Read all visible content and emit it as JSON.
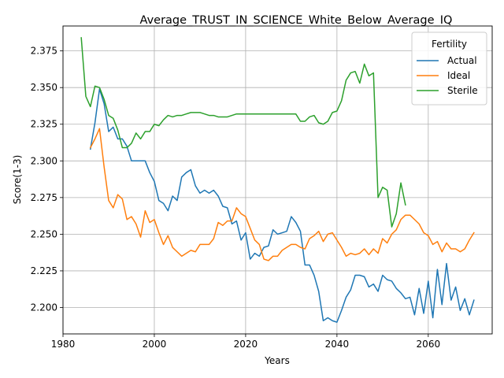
{
  "chart_data": {
    "type": "line",
    "title": "Average_TRUST_IN_SCIENCE_White_Below_Average_IQ",
    "xlabel": "Years",
    "ylabel": "Score(1-3)",
    "xlim": [
      1980,
      2074
    ],
    "ylim": [
      2.182,
      2.392
    ],
    "xticks": [
      1980,
      2000,
      2020,
      2040,
      2060
    ],
    "yticks": [
      2.2,
      2.225,
      2.25,
      2.275,
      2.3,
      2.325,
      2.35,
      2.375
    ],
    "grid": true,
    "legend": {
      "title": "Fertility",
      "placement": "top-right"
    },
    "series": [
      {
        "name": "Actual",
        "color": "#1f77b4",
        "x": [
          1986,
          1987,
          1988,
          1989,
          1990,
          1991,
          1992,
          1993,
          1994,
          1995,
          1996,
          1997,
          1998,
          1999,
          2000,
          2001,
          2002,
          2003,
          2004,
          2005,
          2006,
          2007,
          2008,
          2009,
          2010,
          2011,
          2012,
          2013,
          2014,
          2015,
          2016,
          2017,
          2018,
          2019,
          2020,
          2021,
          2022,
          2023,
          2024,
          2025,
          2026,
          2027,
          2028,
          2029,
          2030,
          2031,
          2032,
          2033,
          2034,
          2035,
          2036,
          2037,
          2038,
          2039,
          2040,
          2041,
          2042,
          2043,
          2044,
          2045,
          2046,
          2047,
          2048,
          2049,
          2050,
          2051,
          2052,
          2053,
          2054,
          2055,
          2056,
          2057,
          2058,
          2059,
          2060,
          2061,
          2062,
          2063,
          2064,
          2065,
          2066,
          2067,
          2068,
          2069,
          2070
        ],
        "values": [
          2.308,
          2.326,
          2.349,
          2.339,
          2.32,
          2.323,
          2.315,
          2.315,
          2.31,
          2.3,
          2.3,
          2.3,
          2.3,
          2.292,
          2.286,
          2.273,
          2.271,
          2.266,
          2.276,
          2.273,
          2.289,
          2.292,
          2.294,
          2.283,
          2.278,
          2.28,
          2.278,
          2.28,
          2.276,
          2.269,
          2.268,
          2.257,
          2.259,
          2.246,
          2.251,
          2.233,
          2.237,
          2.235,
          2.241,
          2.242,
          2.253,
          2.25,
          2.251,
          2.252,
          2.262,
          2.258,
          2.252,
          2.229,
          2.229,
          2.222,
          2.211,
          2.191,
          2.193,
          2.191,
          2.19,
          2.198,
          2.207,
          2.212,
          2.222,
          2.222,
          2.221,
          2.214,
          2.216,
          2.211,
          2.222,
          2.219,
          2.218,
          2.213,
          2.21,
          2.206,
          2.207,
          2.195,
          2.213,
          2.196,
          2.218,
          2.193,
          2.226,
          2.202,
          2.23,
          2.205,
          2.214,
          2.198,
          2.206,
          2.195,
          2.205
        ]
      },
      {
        "name": "Ideal",
        "color": "#ff7f0e",
        "x": [
          1986,
          1987,
          1988,
          1989,
          1990,
          1991,
          1992,
          1993,
          1994,
          1995,
          1996,
          1997,
          1998,
          1999,
          2000,
          2001,
          2002,
          2003,
          2004,
          2005,
          2006,
          2007,
          2008,
          2009,
          2010,
          2011,
          2012,
          2013,
          2014,
          2015,
          2016,
          2017,
          2018,
          2019,
          2020,
          2021,
          2022,
          2023,
          2024,
          2025,
          2026,
          2027,
          2028,
          2029,
          2030,
          2031,
          2032,
          2033,
          2034,
          2035,
          2036,
          2037,
          2038,
          2039,
          2040,
          2041,
          2042,
          2043,
          2044,
          2045,
          2046,
          2047,
          2048,
          2049,
          2050,
          2051,
          2052,
          2053,
          2054,
          2055,
          2056,
          2057,
          2058,
          2059,
          2060,
          2061,
          2062,
          2063,
          2064,
          2065,
          2066,
          2067,
          2068,
          2069,
          2070
        ],
        "values": [
          2.309,
          2.315,
          2.322,
          2.296,
          2.273,
          2.268,
          2.277,
          2.274,
          2.26,
          2.262,
          2.257,
          2.248,
          2.266,
          2.258,
          2.26,
          2.251,
          2.243,
          2.249,
          2.241,
          2.238,
          2.235,
          2.237,
          2.239,
          2.238,
          2.243,
          2.243,
          2.243,
          2.247,
          2.258,
          2.256,
          2.259,
          2.259,
          2.268,
          2.264,
          2.262,
          2.254,
          2.246,
          2.243,
          2.233,
          2.232,
          2.235,
          2.235,
          2.239,
          2.241,
          2.243,
          2.243,
          2.241,
          2.24,
          2.247,
          2.249,
          2.252,
          2.245,
          2.25,
          2.251,
          2.246,
          2.241,
          2.235,
          2.237,
          2.236,
          2.237,
          2.24,
          2.236,
          2.24,
          2.237,
          2.247,
          2.244,
          2.25,
          2.253,
          2.26,
          2.263,
          2.263,
          2.26,
          2.257,
          2.251,
          2.249,
          2.243,
          2.245,
          2.238,
          2.244,
          2.24,
          2.24,
          2.238,
          2.24,
          2.246,
          2.251
        ]
      },
      {
        "name": "Sterile",
        "color": "#2ca02c",
        "x": [
          1984,
          1985,
          1986,
          1987,
          1988,
          1989,
          1990,
          1991,
          1992,
          1993,
          1994,
          1995,
          1996,
          1997,
          1998,
          1999,
          2000,
          2001,
          2002,
          2003,
          2004,
          2005,
          2006,
          2007,
          2008,
          2009,
          2010,
          2011,
          2012,
          2013,
          2014,
          2015,
          2016,
          2017,
          2018,
          2019,
          2020,
          2021,
          2022,
          2023,
          2024,
          2025,
          2026,
          2027,
          2028,
          2029,
          2030,
          2031,
          2032,
          2033,
          2034,
          2035,
          2036,
          2037,
          2038,
          2039,
          2040,
          2041,
          2042,
          2043,
          2044,
          2045,
          2046,
          2047,
          2048,
          2049,
          2050,
          2051,
          2052,
          2053,
          2054,
          2055
        ],
        "values": [
          2.384,
          2.344,
          2.337,
          2.351,
          2.35,
          2.342,
          2.331,
          2.329,
          2.321,
          2.309,
          2.309,
          2.312,
          2.319,
          2.315,
          2.32,
          2.32,
          2.325,
          2.324,
          2.328,
          2.331,
          2.33,
          2.331,
          2.331,
          2.332,
          2.333,
          2.333,
          2.333,
          2.332,
          2.331,
          2.331,
          2.33,
          2.33,
          2.33,
          2.331,
          2.332,
          2.332,
          2.332,
          2.332,
          2.332,
          2.332,
          2.332,
          2.332,
          2.332,
          2.332,
          2.332,
          2.332,
          2.332,
          2.332,
          2.327,
          2.327,
          2.33,
          2.331,
          2.326,
          2.325,
          2.327,
          2.333,
          2.334,
          2.341,
          2.355,
          2.36,
          2.361,
          2.353,
          2.366,
          2.358,
          2.36,
          2.275,
          2.282,
          2.28,
          2.255,
          2.264,
          2.285,
          2.27
        ]
      }
    ]
  }
}
